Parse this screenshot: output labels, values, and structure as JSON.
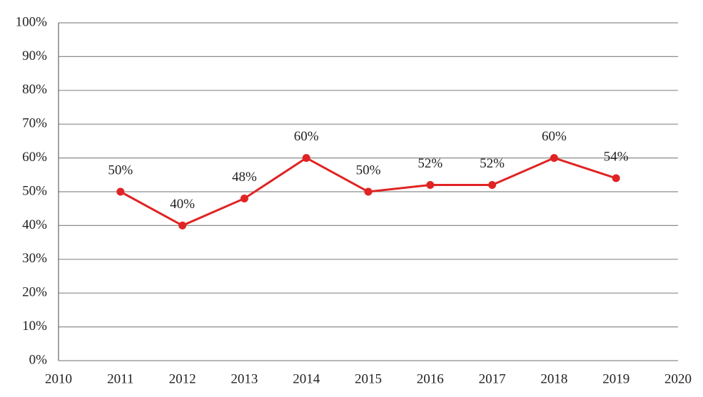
{
  "chart_data": {
    "type": "line",
    "x": [
      2011,
      2012,
      2013,
      2014,
      2015,
      2016,
      2017,
      2018,
      2019
    ],
    "series": [
      {
        "color": "#e02424",
        "values": [
          50,
          40,
          48,
          60,
          50,
          52,
          52,
          60,
          54
        ],
        "value_labels": [
          "50%",
          "40%",
          "48%",
          "60%",
          "50%",
          "52%",
          "52%",
          "60%",
          "54%"
        ]
      }
    ],
    "xlim": [
      2010,
      2020
    ],
    "xticks": [
      2010,
      2011,
      2012,
      2013,
      2014,
      2015,
      2016,
      2017,
      2018,
      2019,
      2020
    ],
    "ylim": [
      0,
      100
    ],
    "yticks": [
      {
        "value": 0,
        "label": "0%"
      },
      {
        "value": 10,
        "label": "10%"
      },
      {
        "value": 20,
        "label": "20%"
      },
      {
        "value": 30,
        "label": "30%"
      },
      {
        "value": 40,
        "label": "40%"
      },
      {
        "value": 50,
        "label": "50%"
      },
      {
        "value": 60,
        "label": "60%"
      },
      {
        "value": 70,
        "label": "70%"
      },
      {
        "value": 80,
        "label": "80%"
      },
      {
        "value": 90,
        "label": "90%"
      },
      {
        "value": 100,
        "label": "100%"
      }
    ],
    "grid": true
  }
}
